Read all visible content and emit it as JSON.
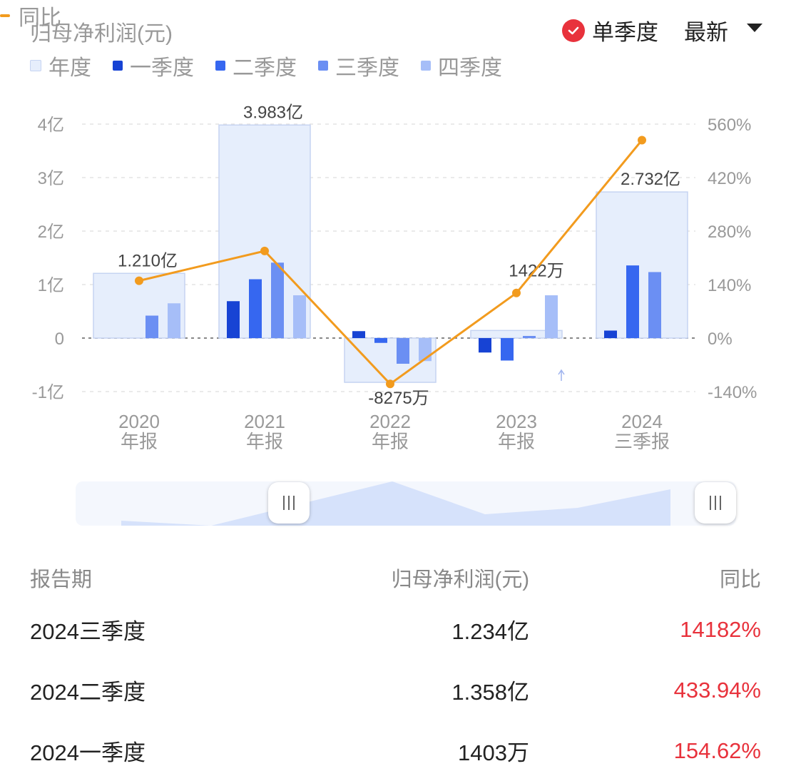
{
  "header": {
    "metric_title": "归母净利润(元)",
    "yoy_legend": "同比",
    "mode_label": "单季度",
    "latest_label": "最新"
  },
  "legend": [
    {
      "name": "年度",
      "color": "#e6eefc"
    },
    {
      "name": "一季度",
      "color": "#1743d4"
    },
    {
      "name": "二季度",
      "color": "#3667f0"
    },
    {
      "name": "三季度",
      "color": "#6b8ff3"
    },
    {
      "name": "四季度",
      "color": "#a6bef8"
    }
  ],
  "chart_data": {
    "type": "bar",
    "categories": [
      "2020\n年报",
      "2021\n年报",
      "2022\n年报",
      "2023\n年报",
      "2024\n三季报"
    ],
    "y_left_ticks": [
      "4亿",
      "3亿",
      "2亿",
      "1亿",
      "0",
      "-1亿"
    ],
    "y_left_range_yi": [
      -1,
      4
    ],
    "y_right_ticks": [
      "560%",
      "420%",
      "280%",
      "140%",
      "0%",
      "-140%"
    ],
    "y_right_range_pct": [
      -140,
      560
    ],
    "annual": {
      "name": "年度",
      "values_yi": [
        1.21,
        3.983,
        -0.8275,
        0.1422,
        2.732
      ],
      "labels": [
        "1.210亿",
        "3.983亿",
        "-8275万",
        "1422万",
        "2.732亿"
      ]
    },
    "quarters": [
      {
        "name": "一季度",
        "values_yi": [
          null,
          0.69,
          0.13,
          -0.27,
          0.1403
        ]
      },
      {
        "name": "二季度",
        "values_yi": [
          null,
          1.1,
          -0.09,
          -0.42,
          1.358
        ]
      },
      {
        "name": "三季度",
        "values_yi": [
          0.42,
          1.41,
          -0.48,
          0.04,
          1.234
        ]
      },
      {
        "name": "四季度",
        "values_yi": [
          0.65,
          0.8,
          -0.43,
          0.8,
          null
        ]
      }
    ],
    "yoy": {
      "name": "同比",
      "values_pct": [
        150,
        228,
        -120,
        118,
        518
      ]
    },
    "grid": true,
    "legend_position": "top-left"
  },
  "table": {
    "headers": [
      "报告期",
      "归母净利润(元)",
      "同比"
    ],
    "rows": [
      {
        "period": "2024三季度",
        "value": "1.234亿",
        "yoy": "14182%"
      },
      {
        "period": "2024二季度",
        "value": "1.358亿",
        "yoy": "433.94%"
      },
      {
        "period": "2024一季度",
        "value": "1403万",
        "yoy": "154.62%"
      }
    ]
  }
}
